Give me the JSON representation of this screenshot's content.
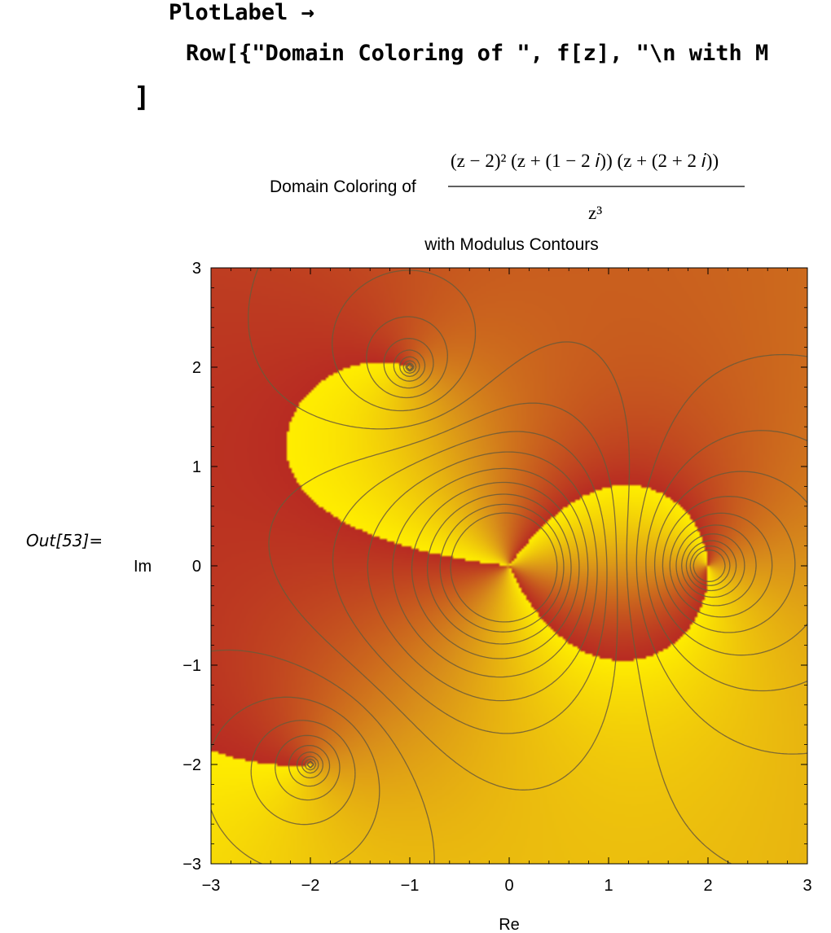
{
  "code": {
    "line1": "PlotLabel →",
    "line2": "Row[{\"Domain Coloring of \", f[z], \"\\n with M",
    "line3": "]"
  },
  "output_label": "Out[53]=",
  "chart_data": {
    "type": "heatmap",
    "title": {
      "prefix": "Domain Coloring of",
      "numerator": "(z − 2)² (z + (1 − 2 𝑖)) (z + (2 + 2 𝑖))",
      "denominator": "z³",
      "subtitle": "with Modulus Contours"
    },
    "function": "(z-2)^2 (z+(1-2i)) (z+(2+2i)) / z^3",
    "zeros": [
      {
        "re": 2,
        "im": 0,
        "order": 2
      },
      {
        "re": -1,
        "im": 2,
        "order": 1
      },
      {
        "re": -2,
        "im": -2,
        "order": 1
      }
    ],
    "poles": [
      {
        "re": 0,
        "im": 0,
        "order": 3
      }
    ],
    "xlabel": "Re",
    "ylabel": "Im",
    "xlim": [
      -3,
      3
    ],
    "ylim": [
      -3,
      3
    ],
    "xticks": [
      -3,
      -2,
      -1,
      0,
      1,
      2,
      3
    ],
    "yticks": [
      -3,
      -2,
      -1,
      0,
      1,
      2,
      3
    ],
    "x_tick_labels": [
      "−3",
      "−2",
      "−1",
      "0",
      "1",
      "2",
      "3"
    ],
    "y_tick_labels": [
      "−3",
      "−2",
      "−1",
      "0",
      "1",
      "2",
      "3"
    ],
    "contour_color": "#6b5a3a",
    "colors": {
      "dark_red": "#b82b22",
      "orange": "#d9901a",
      "yellow": "#ffee00"
    },
    "grid": false
  }
}
